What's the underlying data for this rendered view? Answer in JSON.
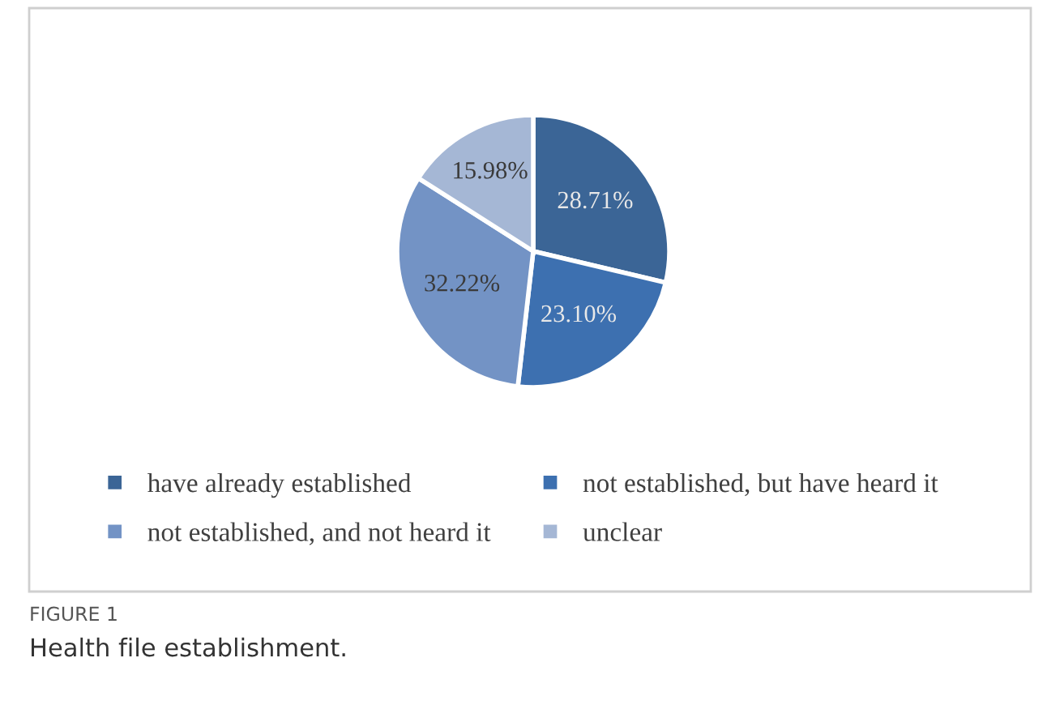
{
  "chart_data": {
    "type": "pie",
    "categories": [
      "have already established",
      "not established, but have heard it",
      "not established, and not heard it",
      "unclear"
    ],
    "values": [
      28.71,
      23.1,
      32.22,
      15.98
    ],
    "value_labels": [
      "28.71%",
      "23.10%",
      "32.22%",
      "15.98%"
    ],
    "colors": [
      "#3b6596",
      "#3d70b0",
      "#7393c5",
      "#a5b7d5"
    ],
    "legend": "bottom",
    "annotations": [
      "FIGURE 1",
      "Health file establishment."
    ]
  }
}
